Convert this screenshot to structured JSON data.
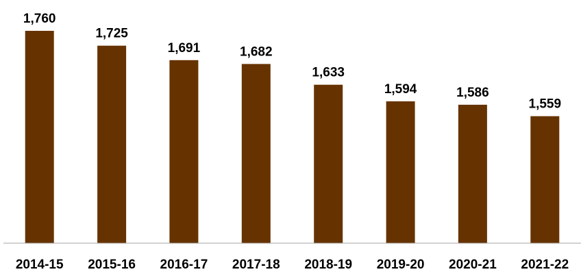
{
  "chart_data": {
    "type": "bar",
    "title": "",
    "xlabel": "",
    "ylabel": "",
    "categories": [
      "2014-15",
      "2015-16",
      "2016-17",
      "2017-18",
      "2018-19",
      "2019-20",
      "2020-21",
      "2021-22"
    ],
    "values": [
      1760,
      1725,
      1691,
      1682,
      1633,
      1594,
      1586,
      1559
    ],
    "value_labels": [
      "1,760",
      "1,725",
      "1,691",
      "1,682",
      "1,633",
      "1,594",
      "1,586",
      "1,559"
    ],
    "ylim": [
      1260,
      1760
    ],
    "grid": false,
    "legend": "none",
    "bar_color": "#663300",
    "axis_color": "#a6a6a6"
  }
}
